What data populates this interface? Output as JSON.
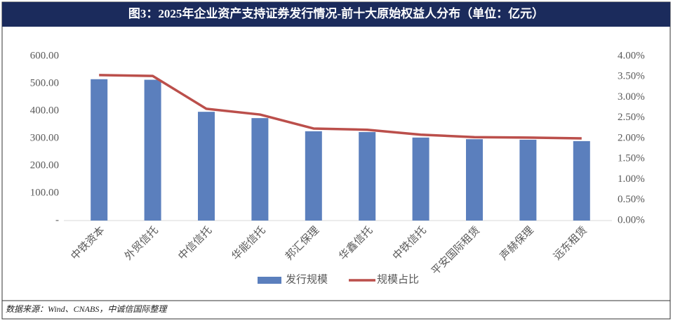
{
  "chart_data": {
    "type": "bar",
    "title": "图3：2025年企业资产支持证券发行情况-前十大原始权益人分布（单位：亿元）",
    "categories": [
      "中铁资本",
      "外贸信托",
      "中信信托",
      "华能信托",
      "邦汇保理",
      "华鑫信托",
      "中铁信托",
      "平安国际租赁",
      "声赫保理",
      "远东租赁"
    ],
    "series": [
      {
        "name": "发行规模",
        "type": "bar",
        "color": "#5b7fbd",
        "values": [
          516,
          514,
          397,
          374,
          326,
          323,
          303,
          297,
          295,
          290
        ]
      },
      {
        "name": "规模占比",
        "type": "line",
        "axis": "y2",
        "color": "#bb4f4b",
        "values": [
          3.54,
          3.52,
          2.72,
          2.58,
          2.24,
          2.21,
          2.09,
          2.03,
          2.02,
          2.0
        ]
      }
    ],
    "ylim": [
      0,
      600
    ],
    "yticks": [
      {
        "value": 0,
        "label": "-"
      },
      {
        "value": 100,
        "label": "100.00"
      },
      {
        "value": 200,
        "label": "200.00"
      },
      {
        "value": 300,
        "label": "300.00"
      },
      {
        "value": 400,
        "label": "400.00"
      },
      {
        "value": 500,
        "label": "500.00"
      },
      {
        "value": 600,
        "label": "600.00"
      }
    ],
    "y2lim": [
      0,
      4
    ],
    "y2ticks": [
      {
        "value": 0,
        "label": "0.00%"
      },
      {
        "value": 0.5,
        "label": "0.50%"
      },
      {
        "value": 1,
        "label": "1.00%"
      },
      {
        "value": 1.5,
        "label": "1.50%"
      },
      {
        "value": 2,
        "label": "2.00%"
      },
      {
        "value": 2.5,
        "label": "2.50%"
      },
      {
        "value": 3,
        "label": "3.00%"
      },
      {
        "value": 3.5,
        "label": "3.50%"
      },
      {
        "value": 4,
        "label": "4.00%"
      }
    ],
    "legend": "bottom",
    "source": "数据来源：Wind、CNABS，中诚信国际整理"
  }
}
